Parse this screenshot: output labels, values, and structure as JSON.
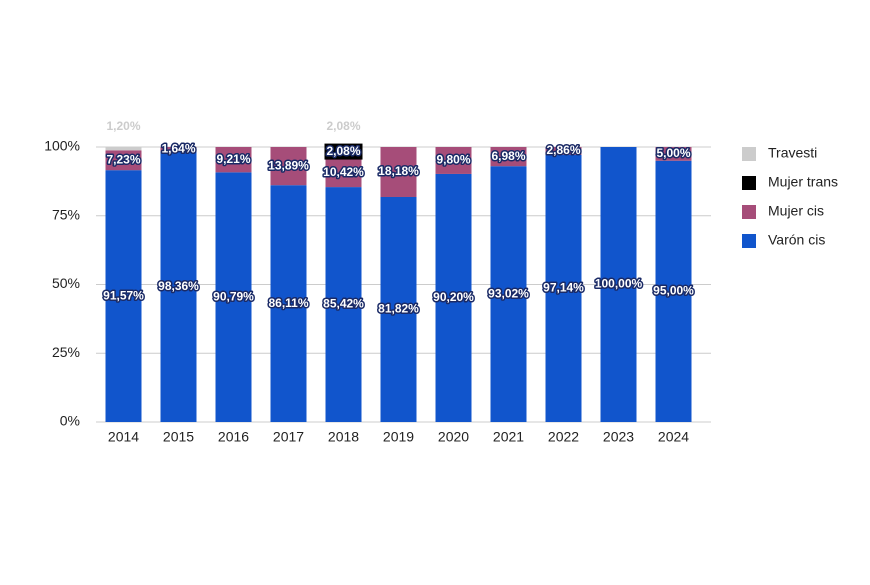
{
  "chart_data": {
    "type": "stacked_bar",
    "categories": [
      "2014",
      "2015",
      "2016",
      "2017",
      "2018",
      "2019",
      "2020",
      "2021",
      "2022",
      "2023",
      "2024"
    ],
    "series": [
      {
        "name": "Varón cis",
        "color": "#1155cc",
        "values": [
          91.57,
          98.36,
          90.79,
          86.11,
          85.42,
          81.82,
          90.2,
          93.02,
          97.14,
          100.0,
          95.0
        ],
        "value_labels": [
          "91,57%",
          "98,36%",
          "90,79%",
          "86,11%",
          "85,42%",
          "81,82%",
          "90,20%",
          "93,02%",
          "97,14%",
          "100,00%",
          "95,00%"
        ]
      },
      {
        "name": "Mujer cis",
        "color": "#a64d79",
        "values": [
          7.23,
          1.64,
          9.21,
          13.89,
          10.42,
          18.18,
          9.8,
          6.98,
          2.86,
          null,
          5.0
        ],
        "value_labels": [
          "7,23%",
          "1,64%",
          "9,21%",
          "13,89%",
          "10,42%",
          "18,18%",
          "9,80%",
          "6,98%",
          "2,86%",
          null,
          "5,00%"
        ]
      },
      {
        "name": "Mujer trans",
        "color": "#000000",
        "values": [
          null,
          null,
          null,
          null,
          2.08,
          null,
          null,
          null,
          null,
          null,
          null
        ],
        "value_labels": [
          null,
          null,
          null,
          null,
          "2,08%",
          null,
          null,
          null,
          null,
          null,
          null
        ]
      },
      {
        "name": "Travesti",
        "color": "#cccccc",
        "values": [
          1.2,
          null,
          null,
          null,
          2.08,
          null,
          null,
          null,
          null,
          null,
          null
        ],
        "value_labels": [
          "1,20%",
          null,
          null,
          null,
          "2,08%",
          null,
          null,
          null,
          null,
          null,
          null
        ]
      }
    ],
    "ylim": [
      0,
      100
    ],
    "yticks": [
      {
        "value": 0,
        "label": "0%"
      },
      {
        "value": 25,
        "label": "25%"
      },
      {
        "value": 50,
        "label": "50%"
      },
      {
        "value": 75,
        "label": "75%"
      },
      {
        "value": 100,
        "label": "100%"
      }
    ],
    "grid": true,
    "legend": "right"
  }
}
